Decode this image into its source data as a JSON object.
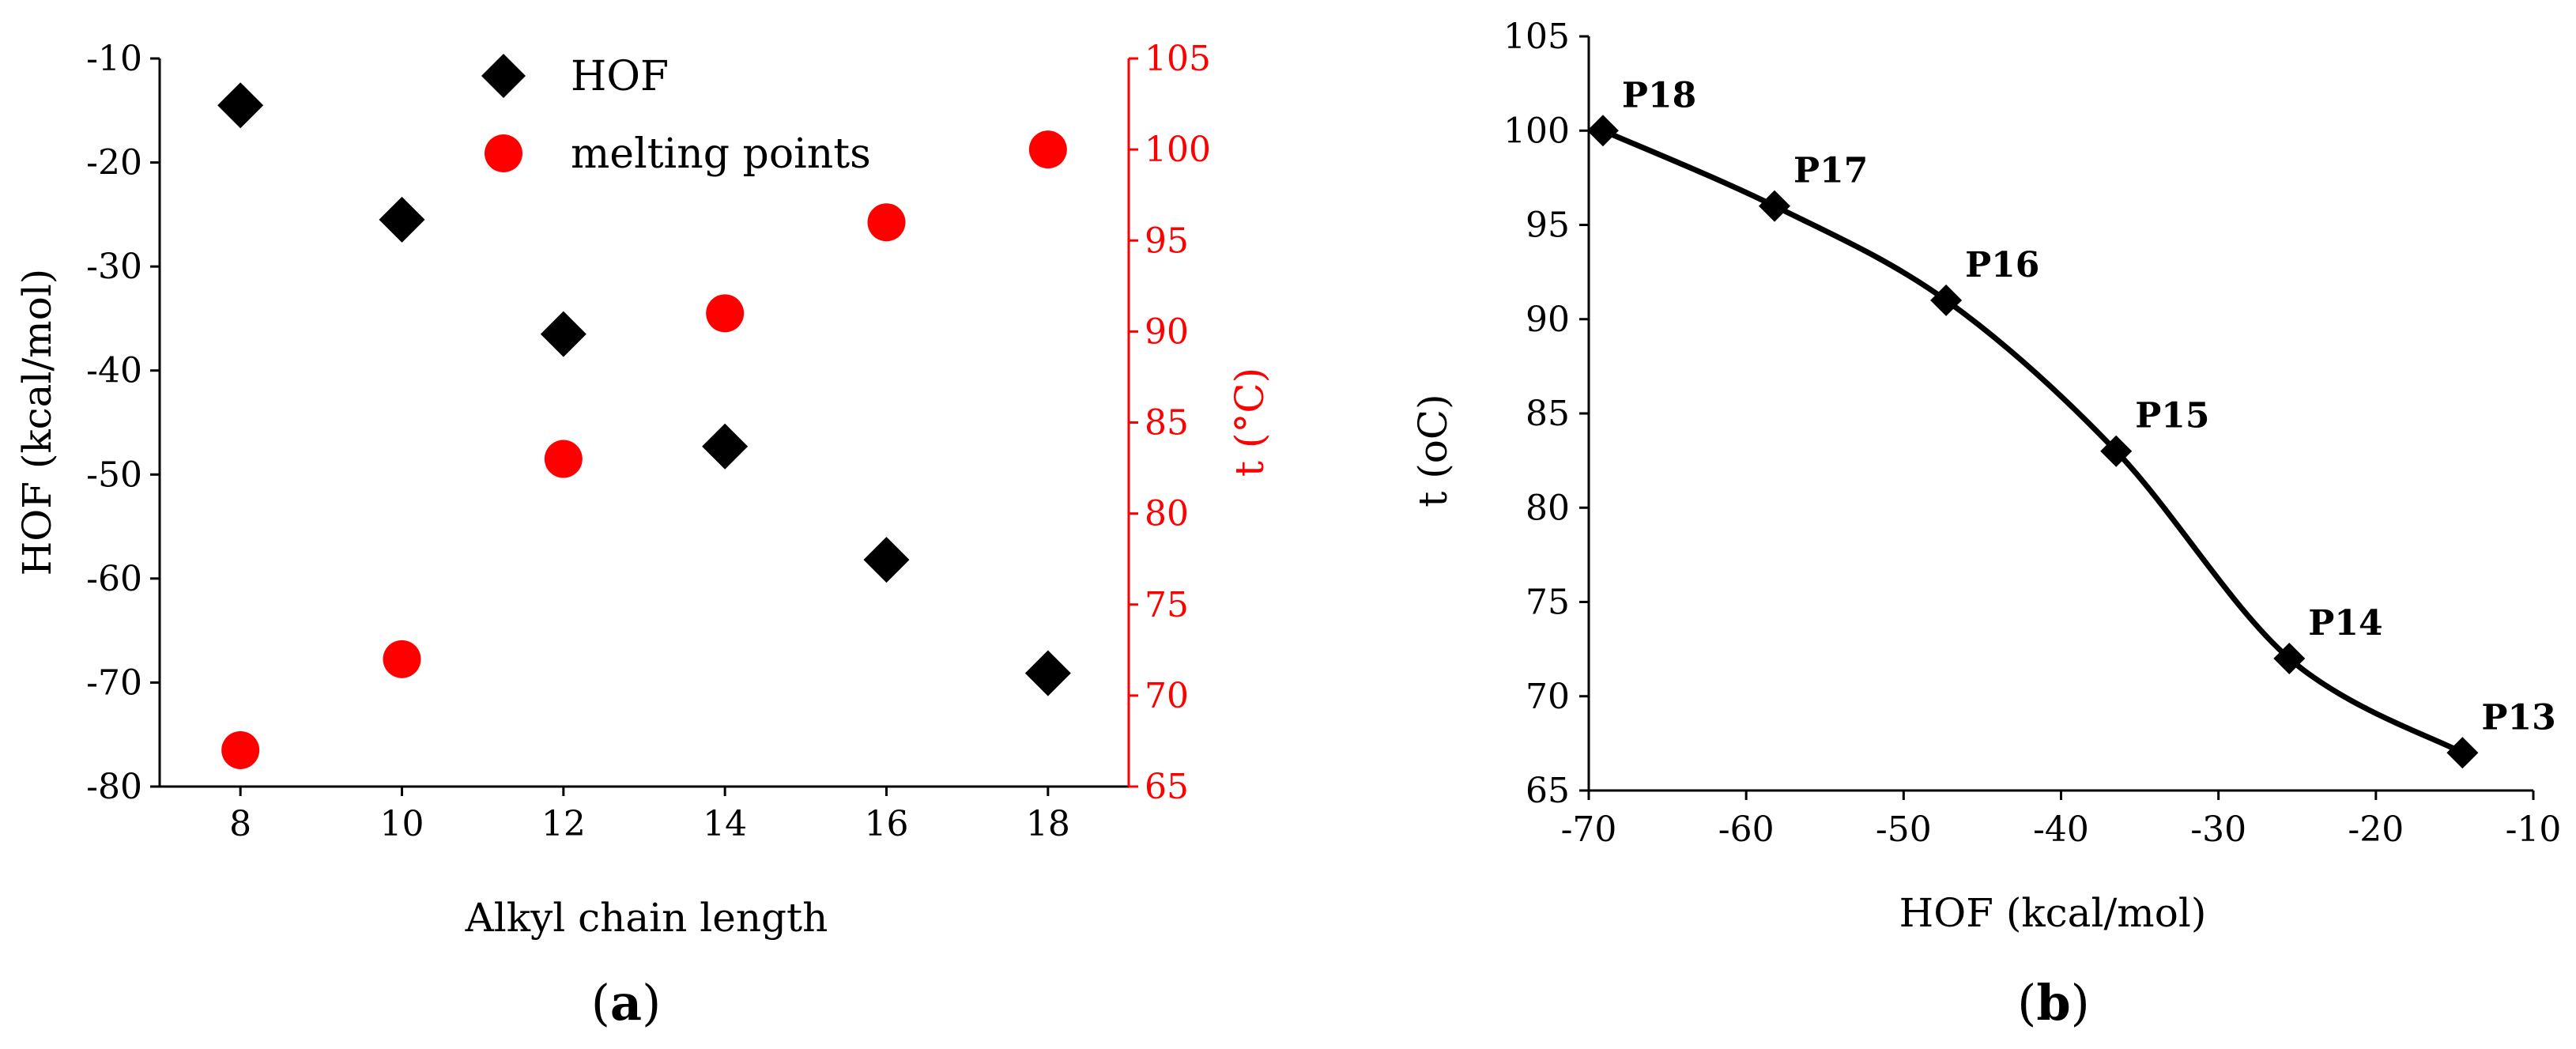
{
  "chart_data": [
    {
      "type": "scatter",
      "panel": "a",
      "caption": {
        "open": "(",
        "letter": "a",
        "close": ")"
      },
      "xlabel": "Alkyl chain length",
      "ylabel": "HOF (kcal/mol)",
      "y2label": "t (°C)",
      "x_ticks": [
        8,
        10,
        12,
        14,
        16,
        18
      ],
      "xlim": [
        7,
        19
      ],
      "ylim": [
        -80,
        -10
      ],
      "y_ticks": [
        -10,
        -20,
        -30,
        -40,
        -50,
        -60,
        -70,
        -80
      ],
      "y2lim": [
        65,
        105
      ],
      "y2_ticks": [
        105,
        100,
        95,
        90,
        85,
        80,
        75,
        70,
        65
      ],
      "grid": false,
      "legend_position": "top",
      "series": [
        {
          "name": "HOF",
          "axis": "left",
          "marker": "diamond",
          "color": "#000000",
          "x": [
            8,
            10,
            12,
            14,
            16,
            18
          ],
          "values": [
            -14.5,
            -25.5,
            -36.5,
            -47.3,
            -58.2,
            -69.1
          ]
        },
        {
          "name": "melting points",
          "axis": "right",
          "marker": "circle",
          "color": "#ff0000",
          "x": [
            8,
            10,
            12,
            14,
            16,
            18
          ],
          "values": [
            67,
            72,
            83,
            91,
            96,
            100
          ]
        }
      ],
      "colors": {
        "primary_axis": "#000000",
        "secondary_axis": "#ff0000"
      }
    },
    {
      "type": "line",
      "panel": "b",
      "caption": {
        "open": "(",
        "letter": "b",
        "close": ")"
      },
      "xlabel": "HOF (kcal/mol)",
      "ylabel": "t (oC)",
      "xlim": [
        -70,
        -10
      ],
      "x_ticks": [
        -70,
        -60,
        -50,
        -40,
        -30,
        -20,
        -10
      ],
      "ylim": [
        65,
        105
      ],
      "y_ticks": [
        105,
        100,
        95,
        90,
        85,
        80,
        75,
        70,
        65
      ],
      "grid": false,
      "series": [
        {
          "marker": "diamond",
          "color": "#000000",
          "smooth": true,
          "x": [
            -69.1,
            -58.2,
            -47.3,
            -36.5,
            -25.5,
            -14.5
          ],
          "values": [
            100,
            96,
            91,
            83,
            72,
            67
          ],
          "point_labels": [
            "P18",
            "P17",
            "P16",
            "P15",
            "P14",
            "P13"
          ]
        }
      ]
    }
  ]
}
